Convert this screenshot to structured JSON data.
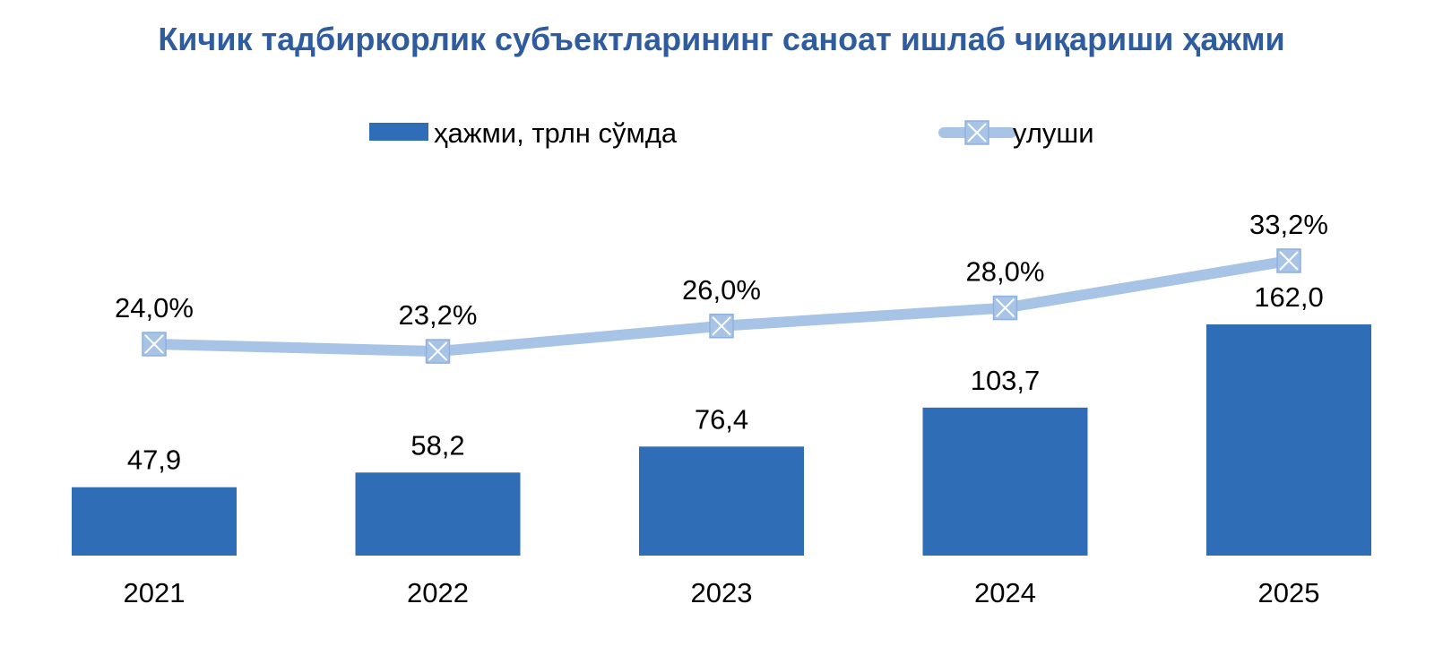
{
  "chart_data": {
    "type": "bar",
    "title": "Кичик тадбиркорлик субъектларининг саноат ишлаб чиқариши ҳажми",
    "categories": [
      "2021",
      "2022",
      "2023",
      "2024",
      "2025"
    ],
    "series": [
      {
        "name": "ҳажми, трлн сўмда",
        "type": "bar",
        "color": "#2f6db7",
        "values": [
          47.9,
          58.2,
          76.4,
          103.7,
          162.0
        ],
        "labels": [
          "47,9",
          "58,2",
          "76,4",
          "103,7",
          "162,0"
        ]
      },
      {
        "name": "улуши",
        "type": "line",
        "color": "#a7c3e6",
        "values": [
          24.0,
          23.2,
          26.0,
          28.0,
          33.2
        ],
        "labels": [
          "24,0%",
          "23,2%",
          "26,0%",
          "28,0%",
          "33,2%"
        ]
      }
    ],
    "legend_position": "top-center",
    "grid": false,
    "bar_ylim": [
      0,
      190
    ],
    "line_ylim": [
      0,
      36
    ]
  }
}
